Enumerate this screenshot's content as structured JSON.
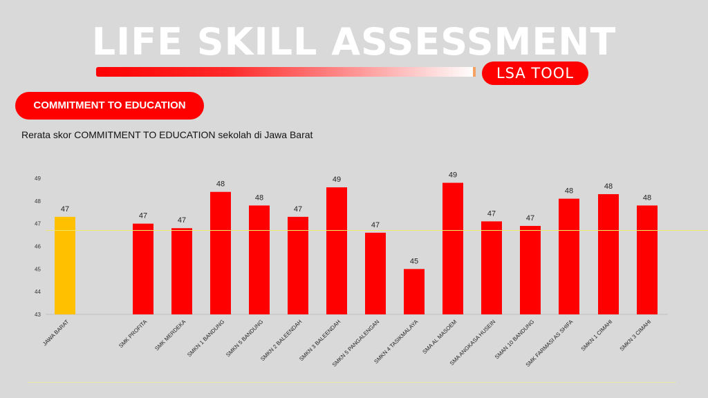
{
  "header": {
    "title": "LIFE SKILL ASSESSMENT",
    "tool_label": "LSA TOOL"
  },
  "section": {
    "label": "COMMITMENT TO EDUCATION",
    "subtitle": "Rerata skor COMMITMENT TO EDUCATION sekolah di Jawa Barat"
  },
  "colors": {
    "accent": "#ff0000",
    "highlight_bar": "#ffc000",
    "background": "#d9d9d9",
    "reference_line": "#f2e96b"
  },
  "chart_data": {
    "type": "bar",
    "title": "",
    "xlabel": "",
    "ylabel": "",
    "ylim": [
      43,
      49
    ],
    "yticks": [
      43,
      44,
      45,
      46,
      47,
      48,
      49
    ],
    "grid": false,
    "reference_line": 46.7,
    "categories": [
      "JAWA BARAT",
      "SMK PROFITA",
      "SMK MERDEKA",
      "SMKN 1 BANDUNG",
      "SMKN 5 BANDUNG",
      "SMKN 2 BALEENDAH",
      "SMKN 3 BALEENDAH",
      "SMKN 5 PANGALENGAN",
      "SMKN 4 TASIKMALAYA",
      "SMA AL MASOEM",
      "SMA ANGKASA HUSEIN",
      "SMAN 10 BANDUNG",
      "SMK FARMASI AS SHIFA",
      "SMKN 1 CIMAHI",
      "SMKN 3 CIMAHI"
    ],
    "values": [
      47.3,
      47.0,
      46.8,
      48.4,
      47.8,
      47.3,
      48.6,
      46.6,
      45.0,
      48.8,
      47.1,
      46.9,
      48.1,
      48.3,
      47.8
    ],
    "data_labels": [
      "47",
      "47",
      "47",
      "48",
      "48",
      "47",
      "49",
      "47",
      "45",
      "49",
      "47",
      "47",
      "48",
      "48",
      "48"
    ]
  }
}
